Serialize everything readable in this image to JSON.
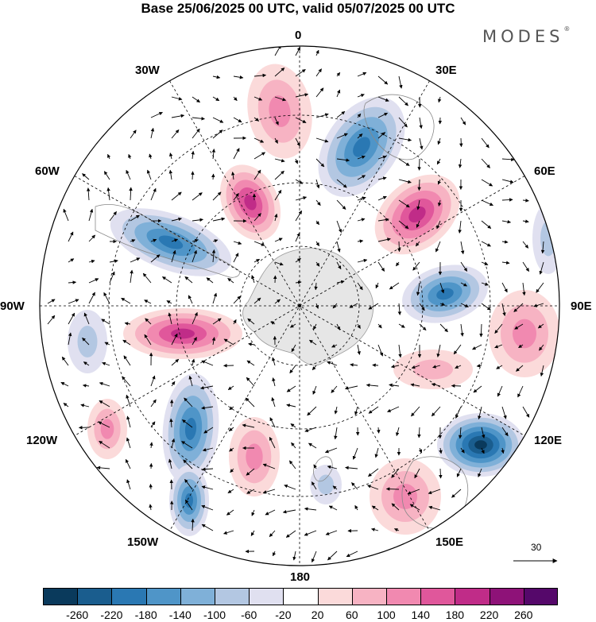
{
  "title": "Base 25/06/2025 00 UTC, valid 05/07/2025 00 UTC",
  "brand": "MODES",
  "brand_mark": "®",
  "longitude_labels": {
    "lon_0": "0",
    "lon_30e": "30E",
    "lon_60e": "60E",
    "lon_90e": "90E",
    "lon_120e": "120E",
    "lon_150e": "150E",
    "lon_180": "180",
    "lon_150w": "150W",
    "lon_120w": "120W",
    "lon_90w": "90W",
    "lon_60w": "60W",
    "lon_30w": "30W"
  },
  "reference_vector": {
    "value": "30"
  },
  "colorbar": {
    "ticks": [
      "-260",
      "-220",
      "-180",
      "-140",
      "-100",
      "-60",
      "-20",
      "20",
      "60",
      "100",
      "140",
      "180",
      "220",
      "260"
    ],
    "colors": [
      "#0a3a5c",
      "#1a5d8e",
      "#2a78b3",
      "#4f95c8",
      "#7fb0d8",
      "#b3c7e2",
      "#e0e0f0",
      "#ffffff",
      "#fbdada",
      "#f7b3c3",
      "#f189b0",
      "#e0579b",
      "#c02c88",
      "#8e1278",
      "#55086a"
    ]
  },
  "map": {
    "projection": "south-polar-stereographic",
    "land_color": "#e8e8e8",
    "anomaly_cells": [
      {
        "color": "#f189b0",
        "strength": "positive-strong"
      },
      {
        "color": "#2a78b3",
        "strength": "negative-strong"
      }
    ]
  }
}
